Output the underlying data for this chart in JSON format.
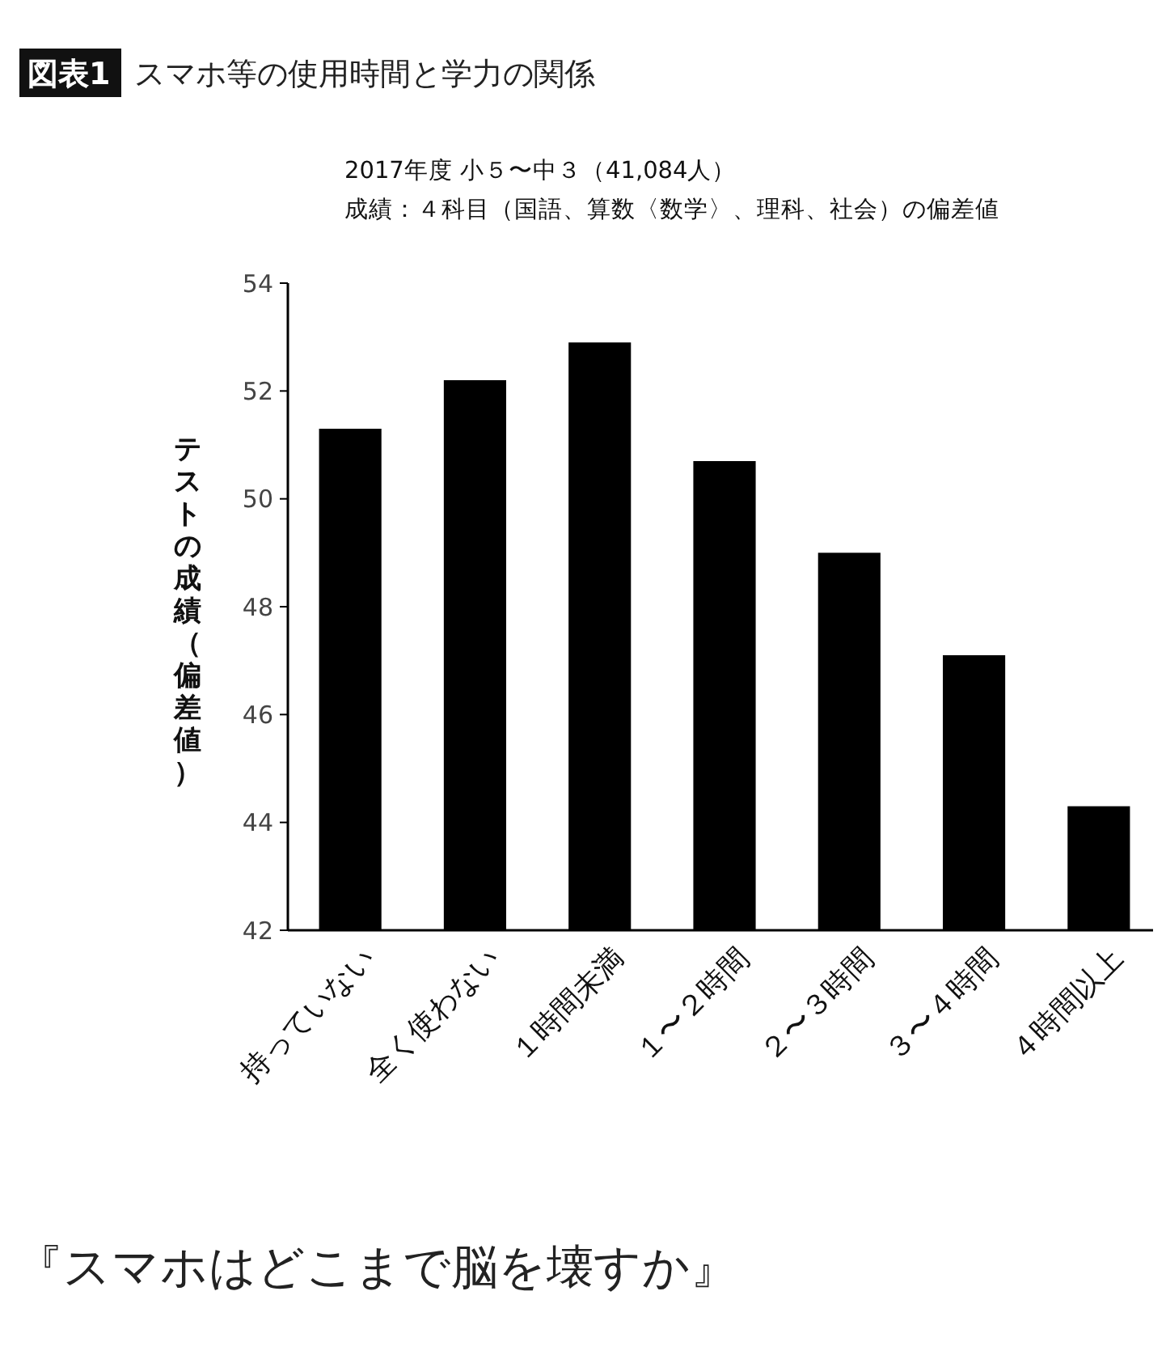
{
  "chart_data": {
    "type": "bar",
    "title": "スマホ等の使用時間と学力の関係",
    "subtitle": "2017年度 小５〜中３（41,084人）",
    "ylabel": "テストの成績（偏差値）",
    "categories": [
      "持っていない",
      "全く使わない",
      "１時間未満",
      "１〜２時間",
      "２〜３時間",
      "３〜４時間",
      "４時間以上"
    ],
    "values": [
      51.3,
      52.2,
      52.9,
      50.7,
      49.0,
      47.1,
      44.3
    ],
    "color": "#000000",
    "ylim": [
      42,
      54
    ],
    "yticks": [
      42,
      44,
      46,
      48,
      50,
      52,
      54
    ],
    "grid": false,
    "legend": false,
    "annotations": [
      "図表1",
      "成績：４科目（国語、算数〈数学〉、理科、社会）の偏差値",
      "『スマホはどこまで脳を壊すか』"
    ]
  }
}
